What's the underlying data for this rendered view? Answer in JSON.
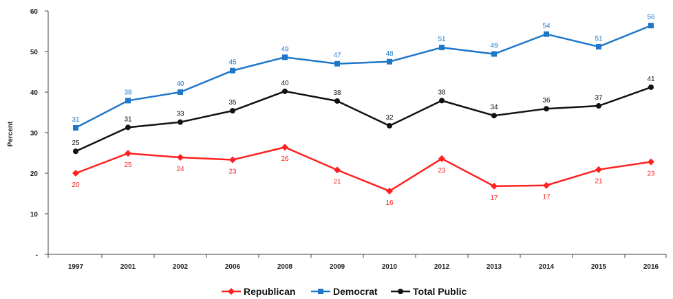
{
  "chart_data": {
    "type": "line",
    "categories": [
      "1997",
      "2001",
      "2002",
      "2006",
      "2008",
      "2009",
      "2010",
      "2012",
      "2013",
      "2014",
      "2015",
      "2016"
    ],
    "series": [
      {
        "name": "Republican",
        "color": "#ff2020",
        "marker": "diamond",
        "values": [
          20,
          25,
          24,
          23,
          26,
          21,
          16,
          23,
          17,
          17,
          21,
          23
        ],
        "labels": [
          "20",
          "25",
          "24",
          "23",
          "26",
          "21",
          "16",
          "23",
          "17",
          "17",
          "21",
          "23"
        ],
        "plot": [
          20,
          24.9,
          23.9,
          23.3,
          26.4,
          20.8,
          15.6,
          23.6,
          16.8,
          17.0,
          20.9,
          22.8
        ]
      },
      {
        "name": "Democrat",
        "color": "#1f77c9",
        "marker": "square",
        "values": [
          31,
          38,
          40,
          45,
          49,
          47,
          48,
          51,
          49,
          54,
          51,
          56
        ],
        "labels": [
          "31",
          "38",
          "40",
          "45",
          "49",
          "47",
          "48",
          "51",
          "49",
          "54",
          "51",
          "56"
        ],
        "plot": [
          31.2,
          37.9,
          40.0,
          45.3,
          48.6,
          47.0,
          47.5,
          51.0,
          49.4,
          54.3,
          51.2,
          56.4
        ]
      },
      {
        "name": "Total Public",
        "color": "#111111",
        "marker": "circle",
        "values": [
          25,
          31,
          33,
          35,
          40,
          38,
          32,
          38,
          34,
          36,
          37,
          41
        ],
        "labels": [
          "25",
          "31",
          "33",
          "35",
          "40",
          "38",
          "32",
          "38",
          "34",
          "36",
          "37",
          "41"
        ],
        "plot": [
          25.4,
          31.3,
          32.6,
          35.4,
          40.2,
          37.8,
          31.7,
          37.9,
          34.2,
          35.9,
          36.6,
          41.2
        ]
      }
    ],
    "ylabel": "Percent",
    "xlabel": "",
    "ylim": [
      0,
      60
    ],
    "yticks": [
      "-",
      "10",
      "20",
      "30",
      "40",
      "50",
      "60"
    ],
    "ytick_values": [
      0,
      10,
      20,
      30,
      40,
      50,
      60
    ],
    "grid": false,
    "legend_position": "bottom"
  }
}
